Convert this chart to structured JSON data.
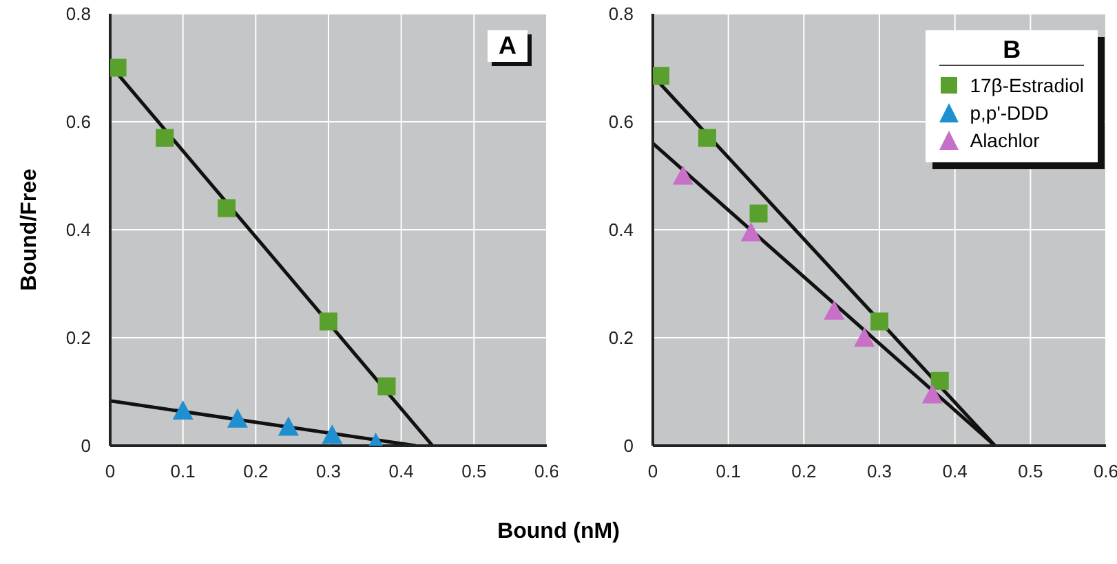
{
  "chart_data": [
    {
      "type": "scatter",
      "title": "A",
      "xlabel": "Bound (nM)",
      "ylabel": "Bound/Free",
      "xlim": [
        0,
        0.6
      ],
      "xticks": [
        0,
        0.1,
        0.2,
        0.3,
        0.4,
        0.5,
        0.6
      ],
      "ylim": [
        0,
        0.8
      ],
      "yticks": [
        0,
        0.2,
        0.4,
        0.6,
        0.8
      ],
      "grid": true,
      "legend": false,
      "series": [
        {
          "color": "#5aa02c",
          "marker": "square",
          "x": [
            0.01,
            0.075,
            0.16,
            0.3,
            0.38
          ],
          "values": [
            0.7,
            0.57,
            0.44,
            0.23,
            0.11
          ]
        },
        {
          "color": "#1f8fd0",
          "marker": "triangle",
          "x": [
            0.1,
            0.175,
            0.245,
            0.305,
            0.365
          ],
          "values": [
            0.065,
            0.05,
            0.035,
            0.02,
            0.005
          ]
        },
        {
          "type": "line",
          "color": "#111111",
          "marker": "none",
          "x": [
            0,
            0.443
          ],
          "values": [
            0.705,
            0
          ]
        },
        {
          "type": "line",
          "color": "#111111",
          "marker": "none",
          "x": [
            0,
            0.42
          ],
          "values": [
            0.083,
            0
          ]
        }
      ]
    },
    {
      "type": "scatter",
      "legend_title": "B",
      "xlim": [
        0,
        0.6
      ],
      "xticks": [
        0,
        0.1,
        0.2,
        0.3,
        0.4,
        0.5,
        0.6
      ],
      "ylim": [
        0,
        0.8
      ],
      "yticks": [
        0,
        0.2,
        0.4,
        0.6,
        0.8
      ],
      "grid": true,
      "legend": "top right",
      "series": [
        {
          "name": "17β-Estradiol",
          "color": "#5aa02c",
          "marker": "square",
          "x": [
            0.01,
            0.072,
            0.14,
            0.3,
            0.38
          ],
          "values": [
            0.685,
            0.57,
            0.43,
            0.23,
            0.12
          ]
        },
        {
          "name": "p,p'-DDD",
          "color": "#1f8fd0",
          "marker": "triangle"
        },
        {
          "name": "Alachlor",
          "color": "#c86fc8",
          "marker": "triangle",
          "x": [
            0.04,
            0.13,
            0.24,
            0.28,
            0.37
          ],
          "values": [
            0.5,
            0.395,
            0.25,
            0.2,
            0.095
          ]
        },
        {
          "type": "line",
          "color": "#111111",
          "marker": "none",
          "x": [
            0,
            0.453
          ],
          "values": [
            0.685,
            0
          ]
        },
        {
          "type": "line",
          "color": "#111111",
          "marker": "none",
          "x": [
            0,
            0.453
          ],
          "values": [
            0.56,
            0
          ]
        }
      ]
    }
  ]
}
